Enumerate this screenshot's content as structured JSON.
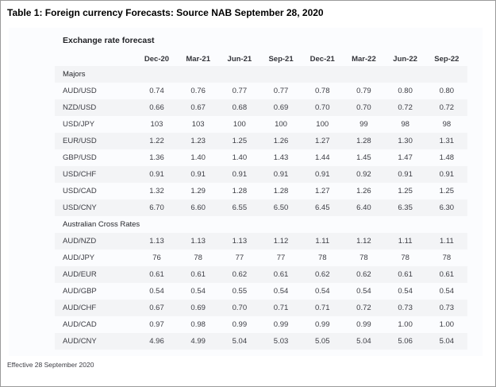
{
  "title": "Table 1: Foreign currency Forecasts: Source NAB September 28, 2020",
  "footer": "Effective 28 September 2020",
  "colors": {
    "stripe": "#f3f4f6",
    "card_background": "#fbfcfe",
    "text": "#3c3d44",
    "title_text": "#000000"
  },
  "table": {
    "heading": "Exchange rate forecast",
    "columns": [
      "Dec-20",
      "Mar-21",
      "Jun-21",
      "Sep-21",
      "Dec-21",
      "Mar-22",
      "Jun-22",
      "Sep-22"
    ],
    "sections": [
      {
        "label": "Majors",
        "rows": [
          {
            "pair": "AUD/USD",
            "values": [
              "0.74",
              "0.76",
              "0.77",
              "0.77",
              "0.78",
              "0.79",
              "0.80",
              "0.80"
            ]
          },
          {
            "pair": "NZD/USD",
            "values": [
              "0.66",
              "0.67",
              "0.68",
              "0.69",
              "0.70",
              "0.70",
              "0.72",
              "0.72"
            ]
          },
          {
            "pair": "USD/JPY",
            "values": [
              "103",
              "103",
              "100",
              "100",
              "100",
              "99",
              "98",
              "98"
            ]
          },
          {
            "pair": "EUR/USD",
            "values": [
              "1.22",
              "1.23",
              "1.25",
              "1.26",
              "1.27",
              "1.28",
              "1.30",
              "1.31"
            ]
          },
          {
            "pair": "GBP/USD",
            "values": [
              "1.36",
              "1.40",
              "1.40",
              "1.43",
              "1.44",
              "1.45",
              "1.47",
              "1.48"
            ]
          },
          {
            "pair": "USD/CHF",
            "values": [
              "0.91",
              "0.91",
              "0.91",
              "0.91",
              "0.91",
              "0.92",
              "0.91",
              "0.91"
            ]
          },
          {
            "pair": "USD/CAD",
            "values": [
              "1.32",
              "1.29",
              "1.28",
              "1.28",
              "1.27",
              "1.26",
              "1.25",
              "1.25"
            ]
          },
          {
            "pair": "USD/CNY",
            "values": [
              "6.70",
              "6.60",
              "6.55",
              "6.50",
              "6.45",
              "6.40",
              "6.35",
              "6.30"
            ]
          }
        ]
      },
      {
        "label": "Australian Cross Rates",
        "rows": [
          {
            "pair": "AUD/NZD",
            "values": [
              "1.13",
              "1.13",
              "1.13",
              "1.12",
              "1.11",
              "1.12",
              "1.11",
              "1.11"
            ]
          },
          {
            "pair": "AUD/JPY",
            "values": [
              "76",
              "78",
              "77",
              "77",
              "78",
              "78",
              "78",
              "78"
            ]
          },
          {
            "pair": "AUD/EUR",
            "values": [
              "0.61",
              "0.61",
              "0.62",
              "0.61",
              "0.62",
              "0.62",
              "0.61",
              "0.61"
            ]
          },
          {
            "pair": "AUD/GBP",
            "values": [
              "0.54",
              "0.54",
              "0.55",
              "0.54",
              "0.54",
              "0.54",
              "0.54",
              "0.54"
            ]
          },
          {
            "pair": "AUD/CHF",
            "values": [
              "0.67",
              "0.69",
              "0.70",
              "0.71",
              "0.71",
              "0.72",
              "0.73",
              "0.73"
            ]
          },
          {
            "pair": "AUD/CAD",
            "values": [
              "0.97",
              "0.98",
              "0.99",
              "0.99",
              "0.99",
              "0.99",
              "1.00",
              "1.00"
            ]
          },
          {
            "pair": "AUD/CNY",
            "values": [
              "4.96",
              "4.99",
              "5.04",
              "5.03",
              "5.05",
              "5.04",
              "5.06",
              "5.04"
            ]
          }
        ]
      }
    ]
  }
}
